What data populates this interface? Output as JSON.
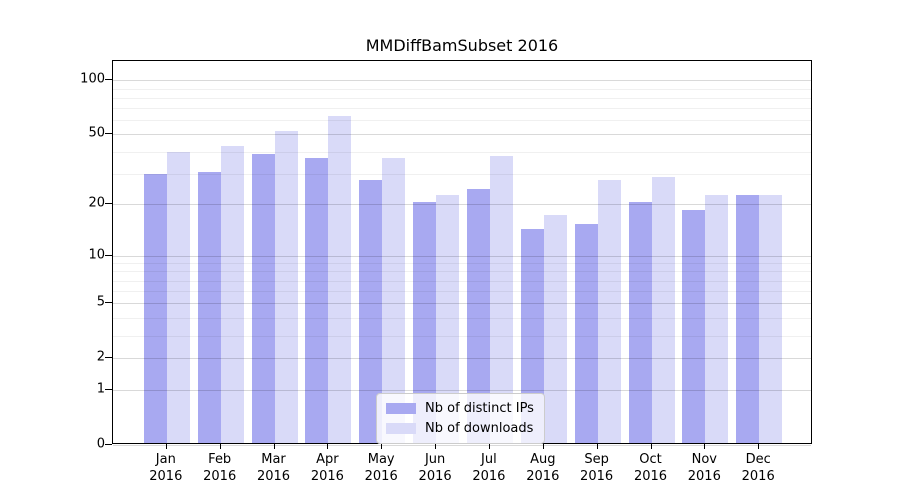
{
  "chart_data": {
    "type": "bar",
    "title": "MMDiffBamSubset 2016",
    "categories": [
      "Jan",
      "Feb",
      "Mar",
      "Apr",
      "May",
      "Jun",
      "Jul",
      "Aug",
      "Sep",
      "Oct",
      "Nov",
      "Dec"
    ],
    "xtick_year": "2016",
    "series": [
      {
        "name": "Nb of distinct IPs",
        "color": "#a8a9f1",
        "values": [
          29,
          30,
          38,
          36,
          27,
          20,
          24,
          14,
          15,
          20,
          18,
          22
        ]
      },
      {
        "name": "Nb of downloads",
        "color": "#d9daf8",
        "values": [
          39,
          42,
          51,
          62,
          36,
          22,
          37,
          17,
          27,
          28,
          22,
          22
        ]
      }
    ],
    "yscale": "log1p",
    "ylim": [
      0,
      128
    ],
    "y_major_ticks": [
      0,
      1,
      2,
      5,
      10,
      20,
      50,
      100
    ],
    "y_minor_ticks": [
      3,
      4,
      6,
      7,
      8,
      9,
      30,
      40,
      60,
      70,
      80,
      90
    ],
    "grid": true,
    "legend_position": "lower-center",
    "colors": {
      "axis": "#000000",
      "grid_major": "rgba(0,0,0,0.15)",
      "grid_minor": "rgba(0,0,0,0.06)",
      "background": "#ffffff"
    }
  }
}
